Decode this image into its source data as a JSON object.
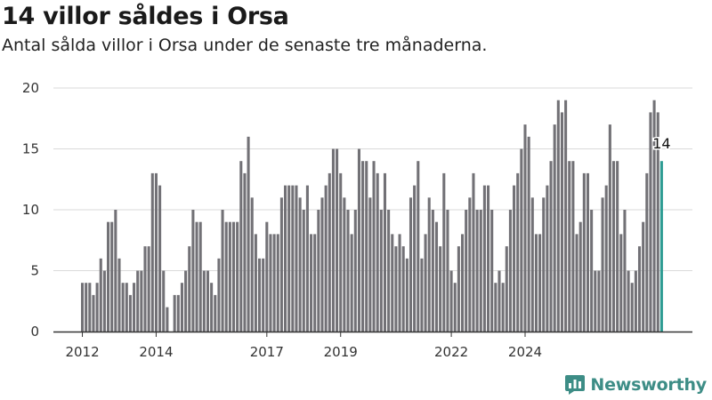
{
  "colors": {
    "bar": "#727176",
    "highlight": "#2e9c93",
    "grid": "#d9d9d9",
    "axis": "#333333",
    "brand": "#3d8d86"
  },
  "brand": {
    "name": "Newsworthy",
    "icon": "newsworthy-logo-icon"
  },
  "chart_data": {
    "type": "bar",
    "title": "14 villor såldes i Orsa",
    "subtitle": "Antal sålda villor i Orsa under de senaste tre månaderna.",
    "xlabel": "",
    "ylabel": "",
    "ylim": [
      0,
      20
    ],
    "y_ticks": [
      0,
      5,
      10,
      15,
      20
    ],
    "x_ticks": [
      {
        "label": "2012",
        "index": 0
      },
      {
        "label": "2014",
        "index": 20
      },
      {
        "label": "2017",
        "index": 50
      },
      {
        "label": "2019",
        "index": 70
      },
      {
        "label": "2022",
        "index": 100
      },
      {
        "label": "2024",
        "index": 120
      }
    ],
    "grid": true,
    "highlight_label": "14",
    "values": [
      4,
      4,
      4,
      3,
      4,
      6,
      5,
      9,
      9,
      10,
      6,
      4,
      4,
      3,
      4,
      5,
      5,
      7,
      7,
      13,
      13,
      12,
      5,
      2,
      0,
      3,
      3,
      4,
      5,
      7,
      10,
      9,
      9,
      5,
      5,
      4,
      3,
      6,
      10,
      9,
      9,
      9,
      9,
      14,
      13,
      16,
      11,
      8,
      6,
      6,
      9,
      8,
      8,
      8,
      11,
      12,
      12,
      12,
      12,
      11,
      10,
      12,
      8,
      8,
      10,
      11,
      12,
      13,
      15,
      15,
      13,
      11,
      10,
      8,
      10,
      15,
      14,
      14,
      11,
      14,
      13,
      10,
      13,
      10,
      8,
      7,
      8,
      7,
      6,
      11,
      12,
      14,
      6,
      8,
      11,
      10,
      9,
      7,
      13,
      10,
      5,
      4,
      7,
      8,
      10,
      11,
      13,
      10,
      10,
      12,
      12,
      10,
      4,
      5,
      4,
      7,
      10,
      12,
      13,
      15,
      17,
      16,
      11,
      8,
      8,
      11,
      12,
      14,
      17,
      19,
      18,
      19,
      14,
      14,
      8,
      9,
      13,
      13,
      10,
      5,
      5,
      11,
      12,
      17,
      14,
      14,
      8,
      10,
      5,
      4,
      5,
      7,
      9,
      13,
      18,
      19,
      18,
      14
    ]
  }
}
